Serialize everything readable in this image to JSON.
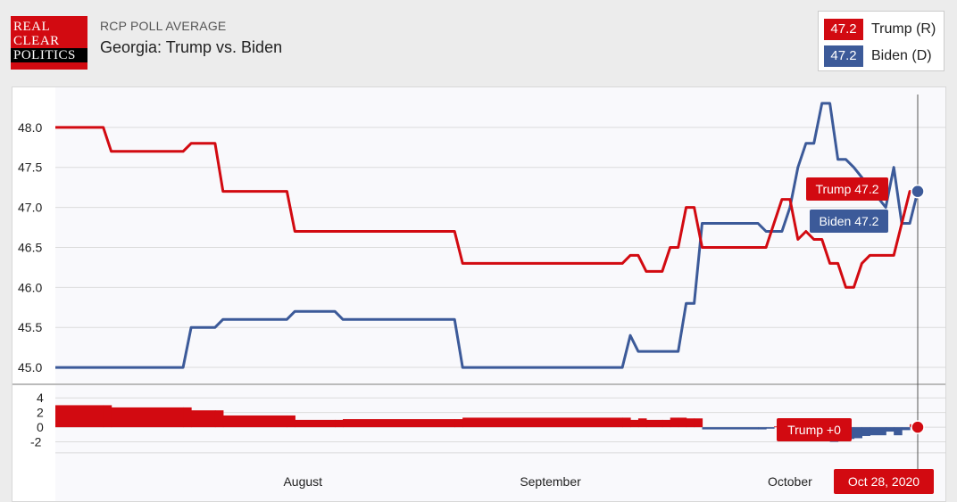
{
  "header": {
    "logo_lines": [
      "REAL",
      "CLEAR",
      "POLITICS"
    ],
    "kicker": "RCP POLL AVERAGE",
    "title": "Georgia: Trump vs. Biden"
  },
  "legend": [
    {
      "value": "47.2",
      "name": "Trump (R)",
      "color": "#d20a11"
    },
    {
      "value": "47.2",
      "name": "Biden (D)",
      "color": "#3c5a99"
    }
  ],
  "hover": {
    "trump_label": "Trump 47.2",
    "biden_label": "Biden 47.2",
    "spread_label": "Trump +0",
    "date_label": "Oct 28, 2020"
  },
  "chart_data": {
    "type": "line",
    "colors": {
      "trump": "#d20a11",
      "biden": "#3c5a99"
    },
    "y_ticks": [
      "48.0",
      "47.5",
      "47.0",
      "46.5",
      "46.0",
      "45.5",
      "45.0"
    ],
    "ylim": [
      44.8,
      48.5
    ],
    "spread_ticks": [
      "4",
      "2",
      "0",
      "-2"
    ],
    "spread_ylim": [
      -4,
      5
    ],
    "month_labels": [
      "August",
      "September",
      "October"
    ],
    "month_positions_day": [
      31,
      62,
      92
    ],
    "x_day_range": [
      0,
      108
    ],
    "grid": true,
    "series": [
      {
        "name": "Trump",
        "points": [
          [
            0,
            48.0
          ],
          [
            6,
            48.0
          ],
          [
            7,
            47.7
          ],
          [
            16,
            47.7
          ],
          [
            17,
            47.8
          ],
          [
            20,
            47.8
          ],
          [
            21,
            47.2
          ],
          [
            29,
            47.2
          ],
          [
            30,
            46.7
          ],
          [
            50,
            46.7
          ],
          [
            51,
            46.3
          ],
          [
            71,
            46.3
          ],
          [
            72,
            46.4
          ],
          [
            73,
            46.4
          ],
          [
            74,
            46.2
          ],
          [
            76,
            46.2
          ],
          [
            77,
            46.5
          ],
          [
            78,
            46.5
          ],
          [
            79,
            47.0
          ],
          [
            80,
            47.0
          ],
          [
            81,
            46.5
          ],
          [
            89,
            46.5
          ],
          [
            90,
            46.8
          ],
          [
            91,
            47.1
          ],
          [
            92,
            47.1
          ],
          [
            93,
            46.6
          ],
          [
            94,
            46.7
          ],
          [
            95,
            46.6
          ],
          [
            96,
            46.6
          ],
          [
            97,
            46.3
          ],
          [
            98,
            46.3
          ],
          [
            99,
            46.0
          ],
          [
            100,
            46.0
          ],
          [
            101,
            46.3
          ],
          [
            102,
            46.4
          ],
          [
            105,
            46.4
          ],
          [
            107,
            47.2
          ],
          [
            108,
            47.2
          ]
        ]
      },
      {
        "name": "Biden",
        "points": [
          [
            0,
            45.0
          ],
          [
            16,
            45.0
          ],
          [
            17,
            45.5
          ],
          [
            20,
            45.5
          ],
          [
            21,
            45.6
          ],
          [
            29,
            45.6
          ],
          [
            30,
            45.7
          ],
          [
            35,
            45.7
          ],
          [
            36,
            45.6
          ],
          [
            50,
            45.6
          ],
          [
            51,
            45.0
          ],
          [
            71,
            45.0
          ],
          [
            72,
            45.4
          ],
          [
            73,
            45.2
          ],
          [
            78,
            45.2
          ],
          [
            79,
            45.8
          ],
          [
            80,
            45.8
          ],
          [
            81,
            46.8
          ],
          [
            88,
            46.8
          ],
          [
            89,
            46.7
          ],
          [
            91,
            46.7
          ],
          [
            92,
            47.0
          ],
          [
            93,
            47.5
          ],
          [
            94,
            47.8
          ],
          [
            95,
            47.8
          ],
          [
            96,
            48.3
          ],
          [
            97,
            48.3
          ],
          [
            98,
            47.6
          ],
          [
            99,
            47.6
          ],
          [
            100,
            47.5
          ],
          [
            104,
            47.0
          ],
          [
            105,
            47.5
          ],
          [
            106,
            46.8
          ],
          [
            107,
            46.8
          ],
          [
            108,
            47.2
          ]
        ]
      }
    ]
  }
}
